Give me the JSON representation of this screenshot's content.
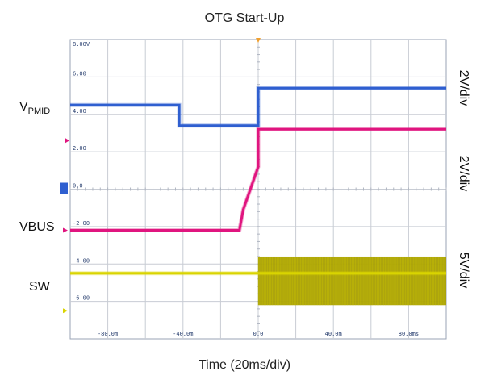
{
  "title": "OTG Start-Up",
  "xlabel": "Time (20ms/div)",
  "channels": {
    "vpmid": {
      "label": "V",
      "sub": "PMID",
      "scale": "2V/div",
      "color": "#2f5fd0"
    },
    "vbus": {
      "label": "VBUS",
      "scale": "2V/div",
      "color": "#e0157f"
    },
    "sw": {
      "label": "SW",
      "scale": "5V/div",
      "color": "#d9d400",
      "burst_color": "#a9a000"
    }
  },
  "scope": {
    "background": "#ffffff",
    "grid_color": "#c8ccd4",
    "tick_label_color": "#2a4070",
    "trigger_color": "#f0a030"
  },
  "chart_data": {
    "type": "line",
    "title": "OTG Start-Up",
    "xlabel": "Time (20ms/div)",
    "ylabel": "",
    "x_unit": "ms",
    "xlim": [
      -100,
      100
    ],
    "ylim": [
      -8,
      8
    ],
    "x_ticks": [
      -80,
      -40,
      0,
      40,
      80
    ],
    "x_tick_labels": [
      "-80.0m",
      "-40.0m",
      "0.0",
      "40.0m",
      "80.0ms"
    ],
    "y_ticks": [
      8,
      6,
      4,
      2,
      0,
      -2,
      -4,
      -6
    ],
    "y_tick_labels": [
      "8.00V",
      "6.00",
      "4.00",
      "2.00",
      "0.0",
      "-2.00",
      "-4.00",
      "-6.00"
    ],
    "grid": true,
    "series": [
      {
        "name": "VPMID",
        "color": "#2f5fd0",
        "x": [
          -100,
          -42,
          -42,
          0,
          0,
          100
        ],
        "y": [
          4.5,
          4.5,
          3.4,
          3.4,
          5.4,
          5.4
        ]
      },
      {
        "name": "VBUS",
        "color": "#e0157f",
        "x": [
          -100,
          -10,
          -8,
          -8,
          0,
          0,
          100
        ],
        "y": [
          -2.2,
          -2.2,
          -1.1,
          -1.1,
          1.2,
          3.2,
          3.2
        ]
      },
      {
        "name": "SW",
        "color": "#d9d400",
        "x": [
          -100,
          0,
          0,
          100
        ],
        "y": [
          -4.5,
          -4.5,
          -4.5,
          -4.5
        ],
        "switching_band": {
          "x_start": 0,
          "x_end": 100,
          "y_min": -6.2,
          "y_max": -3.6
        }
      }
    ]
  }
}
